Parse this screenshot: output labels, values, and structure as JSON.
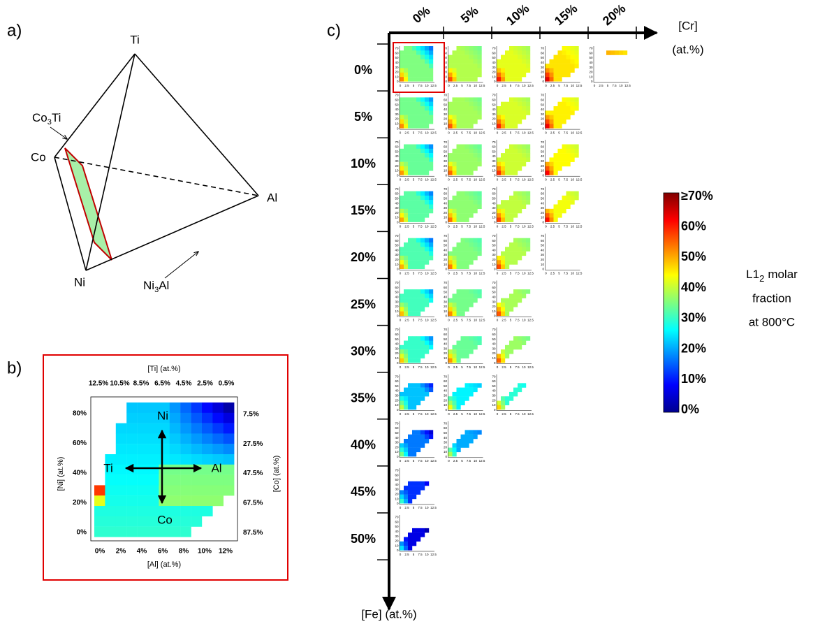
{
  "panel_a": {
    "label": "a)",
    "vertices": {
      "ti": "Ti",
      "co": "Co",
      "al": "Al",
      "ni": "Ni"
    },
    "co3ti": {
      "base": "Co",
      "sub": "3",
      "rest": "Ti"
    },
    "ni3al": {
      "base": "Ni",
      "sub": "3",
      "rest": "Al"
    }
  },
  "panel_b": {
    "label": "b)",
    "top_axis_title": "[Ti] (at.%)",
    "top_ticks": [
      "12.5%",
      "10.5%",
      "8.5%",
      "6.5%",
      "4.5%",
      "2.5%",
      "0.5%"
    ],
    "left_axis_title": "[Ni] (at.%)",
    "left_ticks": [
      "80%",
      "60%",
      "40%",
      "20%",
      "0%"
    ],
    "right_axis_title": "[Co] (at.%)",
    "right_ticks": [
      "7.5%",
      "27.5%",
      "47.5%",
      "67.5%",
      "87.5%"
    ],
    "bottom_axis_title": "[Al] (at.%)",
    "bottom_ticks": [
      "0%",
      "2%",
      "4%",
      "6%",
      "8%",
      "10%",
      "12%"
    ],
    "arrows": {
      "up": "Ni",
      "left": "Ti",
      "right": "Al",
      "down": "Co"
    }
  },
  "panel_c": {
    "label": "c)",
    "cr_title": "[Cr]",
    "cr_unit": "(at.%)",
    "cr_ticks": [
      "0%",
      "5%",
      "10%",
      "15%",
      "20%"
    ],
    "fe_title": "[Fe] (at.%)",
    "fe_ticks": [
      "0%",
      "5%",
      "10%",
      "15%",
      "20%",
      "25%",
      "30%",
      "35%",
      "40%",
      "45%",
      "50%"
    ],
    "mini_xticks": [
      "0",
      "2.5",
      "5",
      "7.5",
      "10",
      "12.5"
    ],
    "mini_yticks": [
      "0",
      "10",
      "20",
      "30",
      "40",
      "50",
      "60",
      "70"
    ]
  },
  "colorbar": {
    "ticks": [
      "≥70%",
      "60%",
      "50%",
      "40%",
      "30%",
      "20%",
      "10%",
      "0%"
    ],
    "title": {
      "line1_base": "L1",
      "line1_sub": "2",
      "line1_rest": "molar",
      "line2": "fraction",
      "line3": "at 800°C"
    }
  }
}
